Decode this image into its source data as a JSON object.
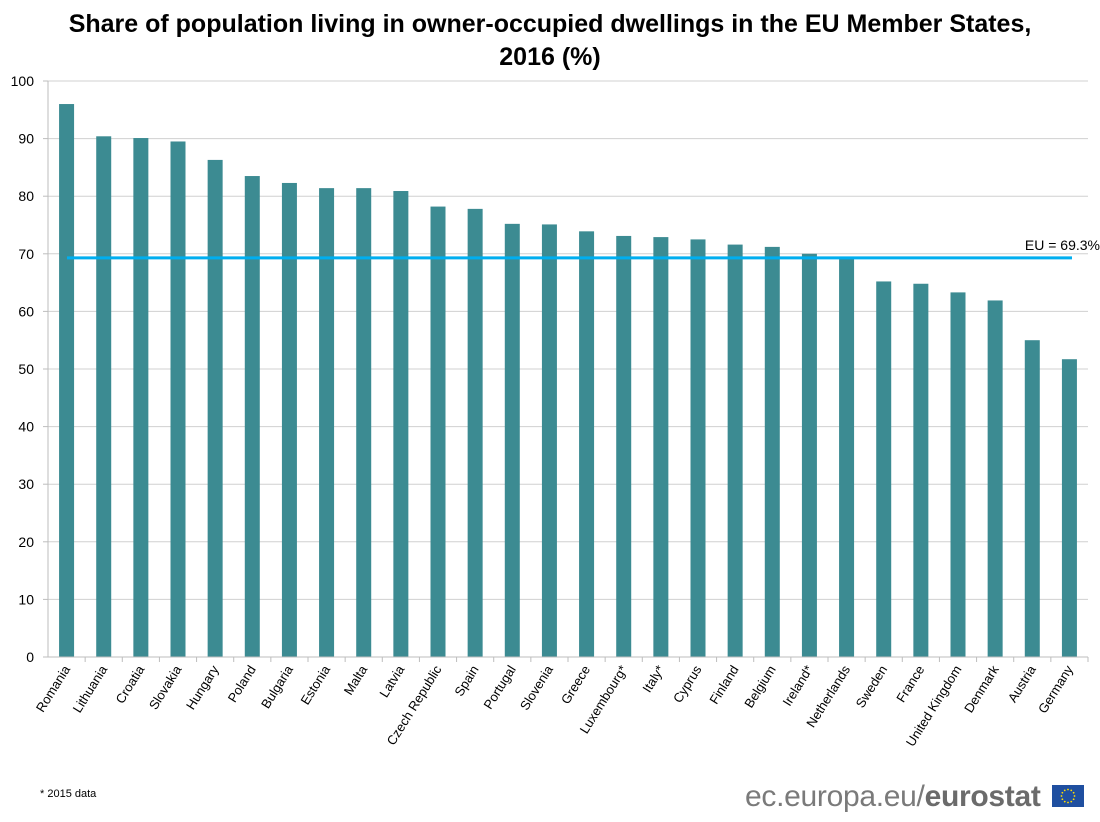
{
  "chart_data": {
    "type": "bar",
    "title": "Share of population living in owner-occupied dwellings in the EU Member States, 2016 (%)",
    "title_line1": "Share of population living in owner-occupied dwellings in the EU Member States,",
    "title_line2": "2016 (%)",
    "categories": [
      "Romania",
      "Lithuania",
      "Croatia",
      "Slovakia",
      "Hungary",
      "Poland",
      "Bulgaria",
      "Estonia",
      "Malta",
      "Latvia",
      "Czech Republic",
      "Spain",
      "Portugal",
      "Slovenia",
      "Greece",
      "Luxembourg*",
      "Italy*",
      "Cyprus",
      "Finland",
      "Belgium",
      "Ireland*",
      "Netherlands",
      "Sweden",
      "France",
      "United Kingdom",
      "Denmark",
      "Austria",
      "Germany"
    ],
    "values": [
      96.0,
      90.4,
      90.1,
      89.5,
      86.3,
      83.5,
      82.3,
      81.4,
      81.4,
      80.9,
      78.2,
      77.8,
      75.2,
      75.1,
      73.9,
      73.1,
      72.9,
      72.5,
      71.6,
      71.2,
      70.0,
      69.4,
      65.2,
      64.8,
      63.3,
      61.9,
      55.0,
      51.7
    ],
    "ylim": [
      0,
      100
    ],
    "yticks": [
      "0",
      "10",
      "20",
      "30",
      "40",
      "50",
      "60",
      "70",
      "80",
      "90",
      "100"
    ],
    "grid": true,
    "reference_line": {
      "value": 69.3,
      "label": "EU = 69.3%",
      "color": "#00aeef"
    },
    "bar_color": "#3c8b92",
    "footnote": "* 2015 data"
  },
  "branding": {
    "site": "ec.europa.eu/",
    "name": "eurostat",
    "flag_icon": "eu-flag-icon"
  }
}
